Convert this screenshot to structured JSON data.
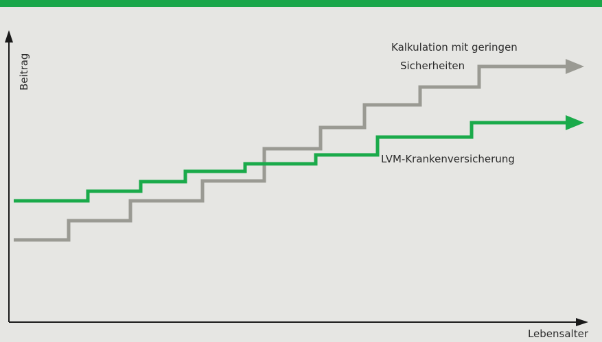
{
  "axes": {
    "y_label": "Beitrag",
    "x_label": "Lebensalter"
  },
  "series": [
    {
      "label_lines": [
        "Kalkulation mit geringen",
        "Sicherheiten"
      ]
    },
    {
      "label_lines": [
        "LVM-Krankenversicherung"
      ]
    }
  ]
}
